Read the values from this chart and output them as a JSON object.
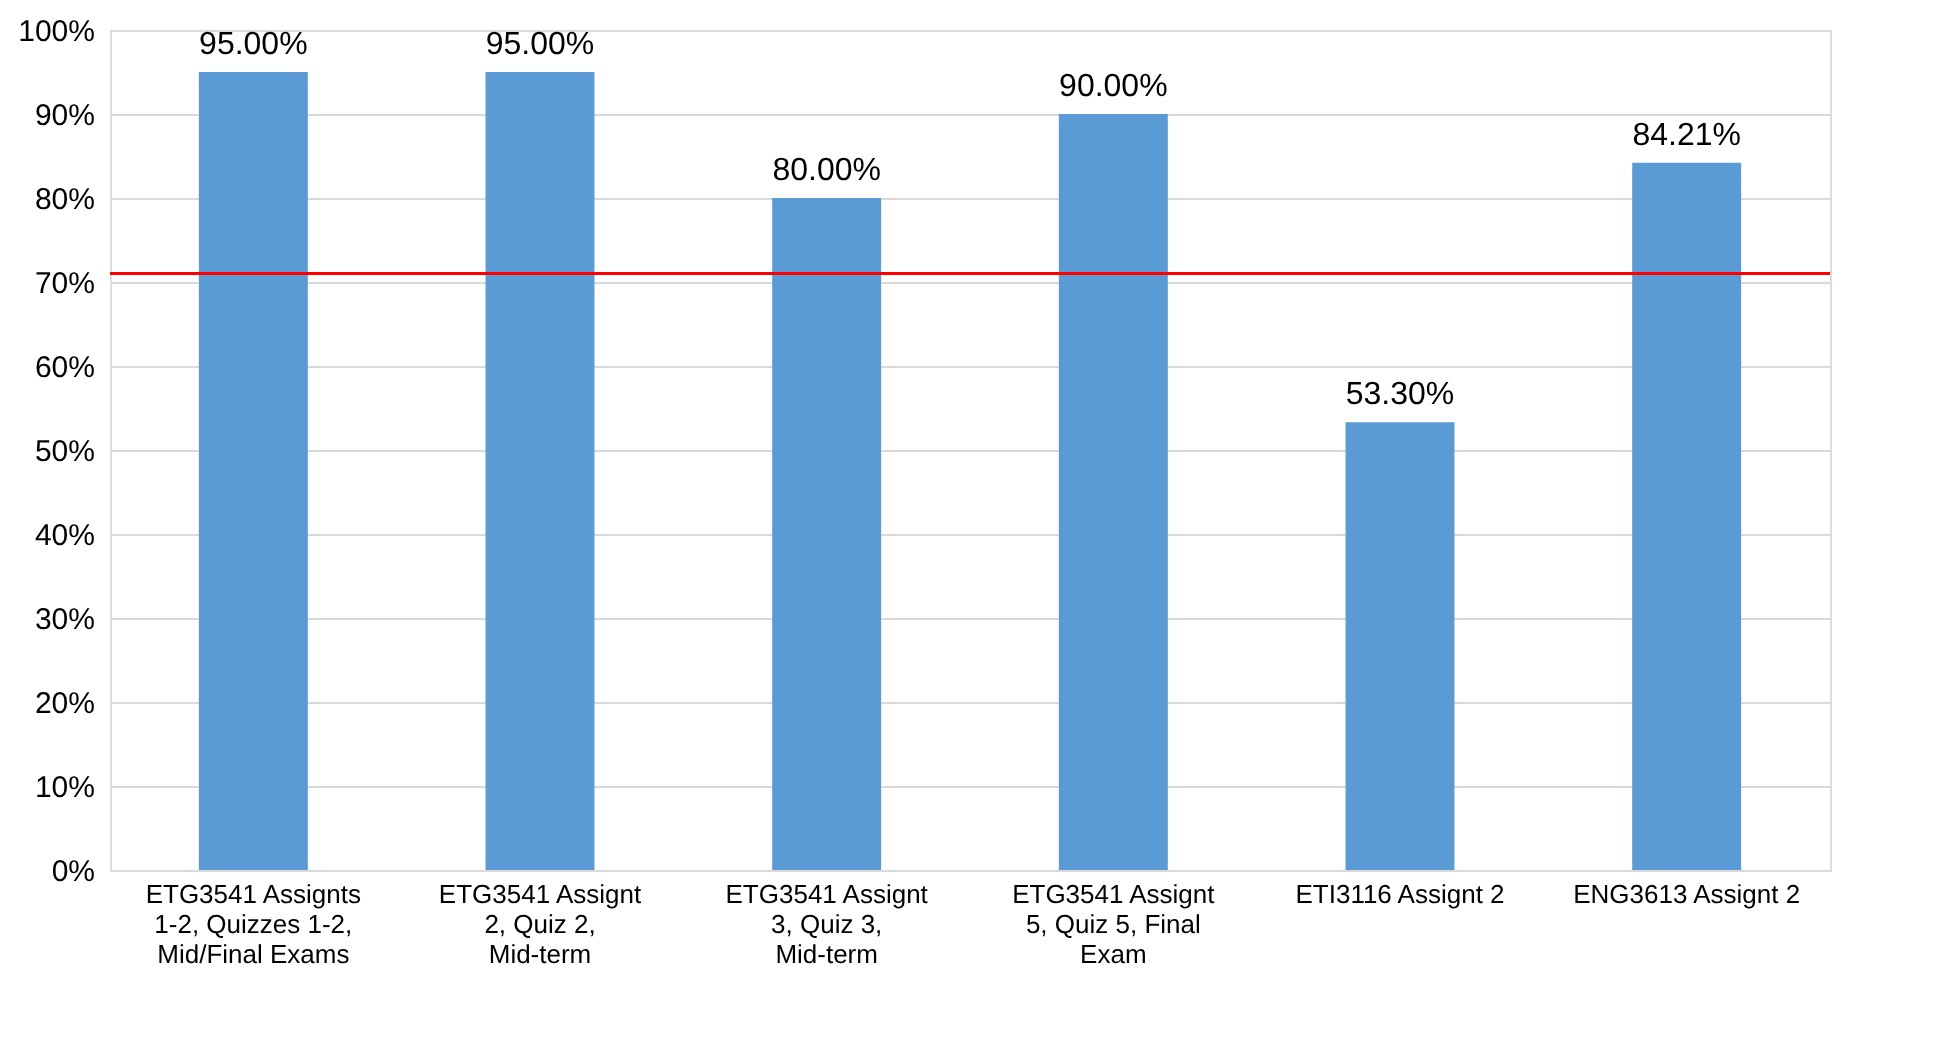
{
  "chart_data": {
    "type": "bar",
    "categories": [
      "ETG3541 Assignts 1-2, Quizzes 1-2, Mid/Final Exams",
      "ETG3541 Assignt 2, Quiz 2, Mid-term",
      "ETG3541 Assignt 3, Quiz 3, Mid-term",
      "ETG3541 Assignt 5, Quiz 5, Final Exam",
      "ETI3116 Assignt 2",
      "ENG3613 Assignt 2"
    ],
    "values": [
      95,
      95,
      80,
      90,
      53.3,
      84.21
    ],
    "value_labels": [
      "95.00%",
      "95.00%",
      "80.00%",
      "90.00%",
      "53.30%",
      "84.21%"
    ],
    "color": "#5b9bd5",
    "ylim": [
      0,
      100
    ],
    "yticks": [
      {
        "value": 0,
        "label": "0%"
      },
      {
        "value": 10,
        "label": "10%"
      },
      {
        "value": 20,
        "label": "20%"
      },
      {
        "value": 30,
        "label": "30%"
      },
      {
        "value": 40,
        "label": "40%"
      },
      {
        "value": 50,
        "label": "50%"
      },
      {
        "value": 60,
        "label": "60%"
      },
      {
        "value": 70,
        "label": "70%"
      },
      {
        "value": 80,
        "label": "80%"
      },
      {
        "value": 90,
        "label": "90%"
      },
      {
        "value": 100,
        "label": "100%"
      }
    ],
    "ref_lines": [
      {
        "axis": "y",
        "value": 71,
        "color": "#ff0000"
      }
    ],
    "grid": "y"
  }
}
